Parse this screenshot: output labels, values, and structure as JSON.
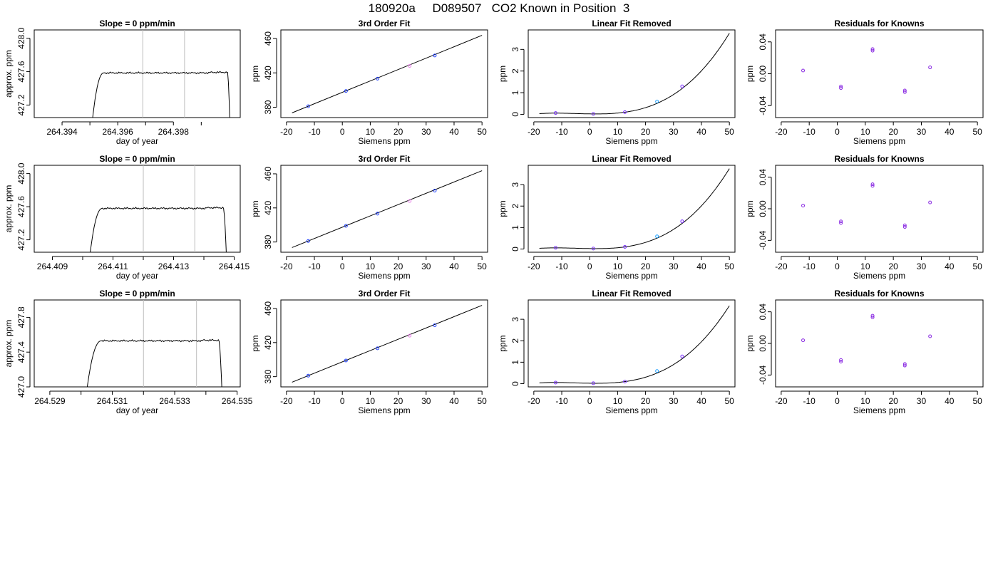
{
  "figure_title": "180920a     D089507   CO2 Known in Position  3",
  "chart_data": [
    {
      "type": "line",
      "title": "Slope =  0  ppm/min",
      "xlabel": "day of year",
      "ylabel": "approx. ppm",
      "xlim": [
        264.393,
        264.4004
      ],
      "ylim": [
        427.05,
        428.1
      ],
      "xticks": [
        "264.394",
        "264.396",
        "264.398"
      ],
      "xtick_values": [
        264.394,
        264.396,
        264.398
      ],
      "yticks": [
        "427.2",
        "427.6",
        "428.0"
      ],
      "ytick_values": [
        427.2,
        427.6,
        428.0
      ],
      "minor_xticks": [
        264.395,
        264.397,
        264.399
      ],
      "vlines": [
        264.3969,
        264.3984
      ],
      "trace_color": "#000000",
      "vline_color": "#bdbdbd",
      "trace": {
        "start": 264.3951,
        "rise_end": 264.3955,
        "plateau_end": 264.39995,
        "end": 264.40003,
        "low": 427.05,
        "level": 427.585,
        "amp": 0.012
      }
    },
    {
      "type": "scatter",
      "title": "3rd Order Fit",
      "xlabel": "Siemens ppm",
      "ylabel": "ppm",
      "xlim": [
        -22,
        52
      ],
      "ylim": [
        368,
        470
      ],
      "xticks": [
        "-20",
        "-10",
        "0",
        "10",
        "20",
        "30",
        "40",
        "50"
      ],
      "xtick_values": [
        -20,
        -10,
        0,
        10,
        20,
        30,
        40,
        50
      ],
      "yticks": [
        "380",
        "420",
        "460"
      ],
      "ytick_values": [
        380,
        420,
        460
      ],
      "x": [
        -12.2,
        1.3,
        12.6,
        24.1,
        33.1
      ],
      "y": [
        381.2,
        398.9,
        413.3,
        428.1,
        440.3
      ],
      "point_colors": [
        "#1f3fff",
        "#1f3fff",
        "#1f3fff",
        "#e67ce6",
        "#1f3fff"
      ],
      "fit_line": {
        "x": [
          -18,
          50
        ],
        "y": [
          373.5,
          463.7
        ]
      }
    },
    {
      "type": "scatter",
      "title": "Linear Fit Removed",
      "xlabel": "Siemens ppm",
      "ylabel": "ppm",
      "xlim": [
        -22,
        52
      ],
      "ylim": [
        -0.15,
        3.9
      ],
      "xticks": [
        "-20",
        "-10",
        "0",
        "10",
        "20",
        "30",
        "40",
        "50"
      ],
      "xtick_values": [
        -20,
        -10,
        0,
        10,
        20,
        30,
        40,
        50
      ],
      "yticks": [
        "0",
        "1",
        "2",
        "3"
      ],
      "ytick_values": [
        0,
        1,
        2,
        3
      ],
      "x": [
        -12.2,
        1.3,
        12.6,
        24.1,
        33.1
      ],
      "y": [
        0.06,
        0.02,
        0.1,
        0.59,
        1.29
      ],
      "point_colors": [
        "#7a2fff",
        "#7a2fff",
        "#7a2fff",
        "#1fa0ff",
        "#7a2fff"
      ],
      "curve": {
        "c0": 0.02,
        "c1": -0.002,
        "c2": 0.00035,
        "c3": 2.36e-05
      }
    },
    {
      "type": "scatter",
      "title": "Residuals for Knowns",
      "xlabel": "Siemens ppm",
      "ylabel": "ppm",
      "xlim": [
        -22,
        52
      ],
      "ylim": [
        -0.055,
        0.055
      ],
      "xticks": [
        "-20",
        "-10",
        "0",
        "10",
        "20",
        "30",
        "40",
        "50"
      ],
      "xtick_values": [
        -20,
        -10,
        0,
        10,
        20,
        30,
        40,
        50
      ],
      "yticks": [
        "-0.04",
        "0.00",
        "0.04"
      ],
      "ytick_values": [
        -0.04,
        0.0,
        0.04
      ],
      "x": [
        -12.2,
        1.3,
        1.3,
        12.6,
        12.6,
        24.1,
        24.1,
        33.1
      ],
      "y": [
        0.004,
        -0.016,
        -0.018,
        0.031,
        0.029,
        -0.021,
        -0.023,
        0.008
      ],
      "point_color": "#8a2be2"
    },
    {
      "type": "line",
      "title": "Slope =  0  ppm/min",
      "xlabel": "day of year",
      "ylabel": "approx. ppm",
      "xlim": [
        264.4084,
        264.4152
      ],
      "ylim": [
        427.05,
        428.1
      ],
      "xticks": [
        "264.409",
        "264.411",
        "264.413",
        "264.415"
      ],
      "xtick_values": [
        264.409,
        264.411,
        264.413,
        264.415
      ],
      "yticks": [
        "427.2",
        "427.6",
        "428.0"
      ],
      "ytick_values": [
        427.2,
        427.6,
        428.0
      ],
      "minor_xticks": [
        264.41,
        264.412,
        264.414
      ],
      "vlines": [
        264.412,
        264.4137
      ],
      "trace_color": "#000000",
      "vline_color": "#bdbdbd",
      "trace": {
        "start": 264.41025,
        "rise_end": 264.41065,
        "plateau_end": 264.41465,
        "end": 264.41475,
        "low": 427.05,
        "level": 427.58,
        "amp": 0.012
      }
    },
    {
      "type": "scatter",
      "title": "3rd Order Fit",
      "xlabel": "Siemens ppm",
      "ylabel": "ppm",
      "xlim": [
        -22,
        52
      ],
      "ylim": [
        368,
        470
      ],
      "xticks": [
        "-20",
        "-10",
        "0",
        "10",
        "20",
        "30",
        "40",
        "50"
      ],
      "xtick_values": [
        -20,
        -10,
        0,
        10,
        20,
        30,
        40,
        50
      ],
      "yticks": [
        "380",
        "420",
        "460"
      ],
      "ytick_values": [
        380,
        420,
        460
      ],
      "x": [
        -12.2,
        1.3,
        12.6,
        24.1,
        33.1
      ],
      "y": [
        381.2,
        398.9,
        413.3,
        428.1,
        440.3
      ],
      "point_colors": [
        "#1f3fff",
        "#1f3fff",
        "#1f3fff",
        "#e67ce6",
        "#1f3fff"
      ],
      "fit_line": {
        "x": [
          -18,
          50
        ],
        "y": [
          373.5,
          463.7
        ]
      }
    },
    {
      "type": "scatter",
      "title": "Linear Fit Removed",
      "xlabel": "Siemens ppm",
      "ylabel": "ppm",
      "xlim": [
        -22,
        52
      ],
      "ylim": [
        -0.15,
        3.9
      ],
      "xticks": [
        "-20",
        "-10",
        "0",
        "10",
        "20",
        "30",
        "40",
        "50"
      ],
      "xtick_values": [
        -20,
        -10,
        0,
        10,
        20,
        30,
        40,
        50
      ],
      "yticks": [
        "0",
        "1",
        "2",
        "3"
      ],
      "ytick_values": [
        0,
        1,
        2,
        3
      ],
      "x": [
        -12.2,
        1.3,
        12.6,
        24.1,
        33.1
      ],
      "y": [
        0.06,
        0.02,
        0.1,
        0.59,
        1.29
      ],
      "point_colors": [
        "#7a2fff",
        "#7a2fff",
        "#7a2fff",
        "#1fa0ff",
        "#7a2fff"
      ],
      "curve": {
        "c0": 0.02,
        "c1": -0.002,
        "c2": 0.00035,
        "c3": 2.36e-05
      }
    },
    {
      "type": "scatter",
      "title": "Residuals for Knowns",
      "xlabel": "Siemens ppm",
      "ylabel": "ppm",
      "xlim": [
        -22,
        52
      ],
      "ylim": [
        -0.055,
        0.055
      ],
      "xticks": [
        "-20",
        "-10",
        "0",
        "10",
        "20",
        "30",
        "40",
        "50"
      ],
      "xtick_values": [
        -20,
        -10,
        0,
        10,
        20,
        30,
        40,
        50
      ],
      "yticks": [
        "-0.04",
        "0.00",
        "0.04"
      ],
      "ytick_values": [
        -0.04,
        0.0,
        0.04
      ],
      "x": [
        -12.2,
        1.3,
        1.3,
        12.6,
        12.6,
        24.1,
        24.1,
        33.1
      ],
      "y": [
        0.004,
        -0.016,
        -0.018,
        0.031,
        0.029,
        -0.021,
        -0.023,
        0.008
      ],
      "point_color": "#8a2be2"
    },
    {
      "type": "line",
      "title": "Slope =  0  ppm/min",
      "xlabel": "day of year",
      "ylabel": "approx. ppm",
      "xlim": [
        264.5285,
        264.5351
      ],
      "ylim": [
        427.0,
        428.0
      ],
      "xticks": [
        "264.529",
        "264.531",
        "264.533",
        "264.535"
      ],
      "xtick_values": [
        264.529,
        264.531,
        264.533,
        264.535
      ],
      "yticks": [
        "427.0",
        "427.4",
        "427.8"
      ],
      "ytick_values": [
        427.0,
        427.4,
        427.8
      ],
      "minor_xticks": [
        264.53,
        264.532,
        264.534
      ],
      "vlines": [
        264.532,
        264.5337
      ],
      "trace_color": "#000000",
      "vline_color": "#bdbdbd",
      "trace": {
        "start": 264.5302,
        "rise_end": 264.53065,
        "plateau_end": 264.53442,
        "end": 264.53452,
        "low": 427.0,
        "level": 427.53,
        "amp": 0.012
      }
    },
    {
      "type": "scatter",
      "title": "3rd Order Fit",
      "xlabel": "Siemens ppm",
      "ylabel": "ppm",
      "xlim": [
        -22,
        52
      ],
      "ylim": [
        368,
        470
      ],
      "xticks": [
        "-20",
        "-10",
        "0",
        "10",
        "20",
        "30",
        "40",
        "50"
      ],
      "xtick_values": [
        -20,
        -10,
        0,
        10,
        20,
        30,
        40,
        50
      ],
      "yticks": [
        "380",
        "420",
        "460"
      ],
      "ytick_values": [
        380,
        420,
        460
      ],
      "x": [
        -12.2,
        1.3,
        12.6,
        24.1,
        33.1
      ],
      "y": [
        381.2,
        398.9,
        413.3,
        428.1,
        440.3
      ],
      "point_colors": [
        "#1f3fff",
        "#1f3fff",
        "#1f3fff",
        "#e67ce6",
        "#1f3fff"
      ],
      "fit_line": {
        "x": [
          -18,
          50
        ],
        "y": [
          373.5,
          463.7
        ]
      }
    },
    {
      "type": "scatter",
      "title": "Linear Fit Removed",
      "xlabel": "Siemens ppm",
      "ylabel": "ppm",
      "xlim": [
        -22,
        52
      ],
      "ylim": [
        -0.15,
        3.9
      ],
      "xticks": [
        "-20",
        "-10",
        "0",
        "10",
        "20",
        "30",
        "40",
        "50"
      ],
      "xtick_values": [
        -20,
        -10,
        0,
        10,
        20,
        30,
        40,
        50
      ],
      "yticks": [
        "0",
        "1",
        "2",
        "3"
      ],
      "ytick_values": [
        0,
        1,
        2,
        3
      ],
      "x": [
        -12.2,
        1.3,
        12.6,
        24.1,
        33.1
      ],
      "y": [
        0.05,
        0.02,
        0.1,
        0.59,
        1.27
      ],
      "point_colors": [
        "#7a2fff",
        "#7a2fff",
        "#7a2fff",
        "#1fa0ff",
        "#7a2fff"
      ],
      "curve": {
        "c0": 0.02,
        "c1": -0.002,
        "c2": 0.00035,
        "c3": 2.27e-05
      }
    },
    {
      "type": "scatter",
      "title": "Residuals for Knowns",
      "xlabel": "Siemens ppm",
      "ylabel": "ppm",
      "xlim": [
        -22,
        52
      ],
      "ylim": [
        -0.055,
        0.055
      ],
      "xticks": [
        "-20",
        "-10",
        "0",
        "10",
        "20",
        "30",
        "40",
        "50"
      ],
      "xtick_values": [
        -20,
        -10,
        0,
        10,
        20,
        30,
        40,
        50
      ],
      "yticks": [
        "-0.04",
        "0.00",
        "0.04"
      ],
      "ytick_values": [
        -0.04,
        0.0,
        0.04
      ],
      "x": [
        -12.2,
        1.3,
        1.3,
        12.6,
        12.6,
        24.1,
        24.1,
        33.1
      ],
      "y": [
        0.004,
        -0.021,
        -0.023,
        0.035,
        0.033,
        -0.026,
        -0.028,
        0.009
      ],
      "point_color": "#8a2be2"
    }
  ]
}
